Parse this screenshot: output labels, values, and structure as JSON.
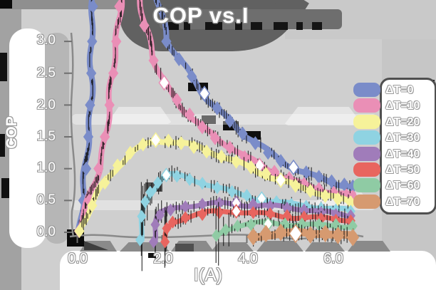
{
  "title": "COP vs.I",
  "axes": {
    "xlabel": "I(A)",
    "ylabel": "COP",
    "xticks": [
      "0.0",
      "2.0",
      "4.0",
      "6.0"
    ],
    "yticks": [
      "3.0",
      "2.5",
      "2.0",
      "1.5",
      "1.0",
      "0.5",
      "0.0"
    ]
  },
  "legend": {
    "position": "right",
    "labels": [
      "ΔT=0",
      "ΔT=10",
      "ΔT=20",
      "ΔT=30",
      "ΔT=40",
      "ΔT=50",
      "ΔT=60",
      "ΔT=70"
    ]
  },
  "chart_data": {
    "type": "line",
    "title": "COP vs.I",
    "xlabel": "I(A)",
    "ylabel": "COP",
    "xlim": [
      -0.2,
      6.7
    ],
    "ylim": [
      -0.2,
      3.6
    ],
    "xtick_values": [
      0.0,
      2.0,
      4.0,
      6.0
    ],
    "ytick_values": [
      3.0,
      2.5,
      2.0,
      1.5,
      1.0,
      0.5,
      0.0
    ],
    "grid": false,
    "style": "xkcd-sketch thick lines, diamond markers, dense black error bars, white-outlined labels",
    "series": [
      {
        "name": "ΔT=0",
        "color": "#7a8cc9",
        "width": 8,
        "err": 0.09,
        "open_markers": [
          13,
          20
        ],
        "points": [
          [
            0.04,
            0.02
          ],
          [
            0.14,
            0.5
          ],
          [
            0.21,
            1.0
          ],
          [
            0.26,
            1.5
          ],
          [
            0.3,
            2.0
          ],
          [
            0.33,
            2.5
          ],
          [
            0.35,
            3.0
          ],
          [
            0.37,
            3.55
          ],
          [
            0.42,
            4.7
          ],
          [
            1.55,
            4.9
          ],
          [
            2.1,
            3.0
          ],
          [
            2.4,
            2.72
          ],
          [
            2.7,
            2.45
          ],
          [
            3.0,
            2.18
          ],
          [
            3.3,
            1.95
          ],
          [
            3.6,
            1.75
          ],
          [
            3.9,
            1.55
          ],
          [
            4.2,
            1.4
          ],
          [
            4.5,
            1.25
          ],
          [
            4.8,
            1.12
          ],
          [
            5.1,
            1.02
          ],
          [
            5.4,
            0.94
          ],
          [
            5.7,
            0.87
          ],
          [
            6.0,
            0.8
          ],
          [
            6.3,
            0.75
          ],
          [
            6.5,
            0.72
          ]
        ]
      },
      {
        "name": "ΔT=10",
        "color": "#ea8fb6",
        "width": 8,
        "err": 0.09,
        "open_markers": [
          12,
          19
        ],
        "points": [
          [
            0.04,
            0.02
          ],
          [
            0.28,
            0.5
          ],
          [
            0.5,
            1.0
          ],
          [
            0.65,
            1.5
          ],
          [
            0.76,
            2.0
          ],
          [
            0.85,
            2.5
          ],
          [
            0.92,
            3.0
          ],
          [
            0.99,
            3.55
          ],
          [
            1.08,
            4.7
          ],
          [
            1.28,
            4.8
          ],
          [
            1.58,
            3.25
          ],
          [
            1.8,
            2.7
          ],
          [
            2.05,
            2.35
          ],
          [
            2.35,
            2.08
          ],
          [
            2.65,
            1.85
          ],
          [
            2.95,
            1.65
          ],
          [
            3.25,
            1.48
          ],
          [
            3.6,
            1.33
          ],
          [
            3.95,
            1.18
          ],
          [
            4.3,
            1.05
          ],
          [
            4.65,
            0.95
          ],
          [
            5.0,
            0.85
          ],
          [
            5.35,
            0.76
          ],
          [
            5.7,
            0.68
          ],
          [
            6.05,
            0.62
          ],
          [
            6.35,
            0.58
          ],
          [
            6.5,
            0.56
          ]
        ]
      },
      {
        "name": "ΔT=20",
        "color": "#f6f29a",
        "width": 8,
        "err": 0.08,
        "open_markers": [
          6,
          15
        ],
        "points": [
          [
            0.05,
            0.02
          ],
          [
            0.35,
            0.42
          ],
          [
            0.65,
            0.78
          ],
          [
            0.95,
            1.05
          ],
          [
            1.25,
            1.25
          ],
          [
            1.55,
            1.38
          ],
          [
            1.85,
            1.45
          ],
          [
            2.15,
            1.44
          ],
          [
            2.45,
            1.4
          ],
          [
            2.75,
            1.34
          ],
          [
            3.05,
            1.27
          ],
          [
            3.4,
            1.19
          ],
          [
            3.75,
            1.11
          ],
          [
            4.1,
            1.02
          ],
          [
            4.45,
            0.92
          ],
          [
            4.8,
            0.82
          ],
          [
            5.15,
            0.73
          ],
          [
            5.5,
            0.65
          ],
          [
            5.85,
            0.57
          ],
          [
            6.15,
            0.52
          ],
          [
            6.45,
            0.47
          ]
        ]
      },
      {
        "name": "ΔT=30",
        "color": "#8fd3e2",
        "width": 7,
        "open_markers": [
          5,
          12
        ],
        "errs": [
          0.5,
          0.42,
          0.3,
          0.2,
          0.14,
          0.1,
          0.1,
          0.09,
          0.09,
          0.08,
          0.08,
          0.08,
          0.08,
          0.08,
          0.08,
          0.08,
          0.08,
          0.08,
          0.08
        ],
        "points": [
          [
            1.48,
            -0.12
          ],
          [
            1.52,
            0.25
          ],
          [
            1.6,
            0.48
          ],
          [
            1.72,
            0.63
          ],
          [
            1.9,
            0.78
          ],
          [
            2.1,
            0.9
          ],
          [
            2.35,
            0.88
          ],
          [
            2.65,
            0.83
          ],
          [
            2.95,
            0.77
          ],
          [
            3.3,
            0.7
          ],
          [
            3.65,
            0.64
          ],
          [
            4.0,
            0.58
          ],
          [
            4.35,
            0.53
          ],
          [
            4.7,
            0.48
          ],
          [
            5.05,
            0.44
          ],
          [
            5.4,
            0.41
          ],
          [
            5.75,
            0.38
          ],
          [
            6.1,
            0.35
          ],
          [
            6.45,
            0.33
          ]
        ]
      },
      {
        "name": "ΔT=40",
        "color": "#a07cba",
        "width": 7,
        "open_markers": [
          7
        ],
        "errs": [
          0.4,
          0.3,
          0.15,
          0.09,
          0.08,
          0.08,
          0.08,
          0.08,
          0.08,
          0.08,
          0.08,
          0.08,
          0.08,
          0.08,
          0.08
        ],
        "points": [
          [
            1.8,
            -0.15
          ],
          [
            1.84,
            0.12
          ],
          [
            1.95,
            0.27
          ],
          [
            2.2,
            0.35
          ],
          [
            2.55,
            0.4
          ],
          [
            2.95,
            0.44
          ],
          [
            3.35,
            0.46
          ],
          [
            3.75,
            0.46
          ],
          [
            4.15,
            0.44
          ],
          [
            4.55,
            0.41
          ],
          [
            4.95,
            0.38
          ],
          [
            5.35,
            0.35
          ],
          [
            5.75,
            0.31
          ],
          [
            6.1,
            0.28
          ],
          [
            6.45,
            0.26
          ]
        ]
      },
      {
        "name": "ΔT=50",
        "color": "#e8655f",
        "width": 7,
        "open_markers": [
          6
        ],
        "errs": [
          0.35,
          0.25,
          0.12,
          0.08,
          0.07,
          0.07,
          0.07,
          0.07,
          0.07,
          0.07,
          0.07,
          0.07,
          0.07,
          0.07
        ],
        "points": [
          [
            2.07,
            -0.15
          ],
          [
            2.11,
            0.06
          ],
          [
            2.25,
            0.16
          ],
          [
            2.55,
            0.23
          ],
          [
            2.95,
            0.28
          ],
          [
            3.35,
            0.31
          ],
          [
            3.75,
            0.33
          ],
          [
            4.15,
            0.31
          ],
          [
            4.55,
            0.29
          ],
          [
            4.95,
            0.26
          ],
          [
            5.35,
            0.24
          ],
          [
            5.75,
            0.21
          ],
          [
            6.1,
            0.19
          ],
          [
            6.45,
            0.18
          ]
        ]
      },
      {
        "name": "ΔT=60",
        "color": "#8fcba4",
        "width": 7,
        "open_markers": [
          4
        ],
        "errs": [
          0.38,
          0.3,
          0.08,
          0.06,
          0.06,
          0.06,
          0.06,
          0.06,
          0.06,
          0.06
        ],
        "points": [
          [
            3.28,
            -0.05
          ],
          [
            3.5,
            0.04
          ],
          [
            3.78,
            0.1
          ],
          [
            4.1,
            0.12
          ],
          [
            4.5,
            0.13
          ],
          [
            4.9,
            0.13
          ],
          [
            5.3,
            0.13
          ],
          [
            5.7,
            0.12
          ],
          [
            6.1,
            0.12
          ],
          [
            6.5,
            0.1
          ]
        ]
      },
      {
        "name": "ΔT=70",
        "color": "#d69a70",
        "width": 11,
        "err": 0.11,
        "open_markers": [
          3
        ],
        "points": [
          [
            4.15,
            -0.07
          ],
          [
            4.45,
            -0.02
          ],
          [
            4.8,
            0.0
          ],
          [
            5.15,
            -0.02
          ],
          [
            5.5,
            -0.04
          ],
          [
            5.85,
            -0.02
          ],
          [
            6.15,
            -0.05
          ],
          [
            6.5,
            -0.08
          ]
        ]
      }
    ]
  }
}
